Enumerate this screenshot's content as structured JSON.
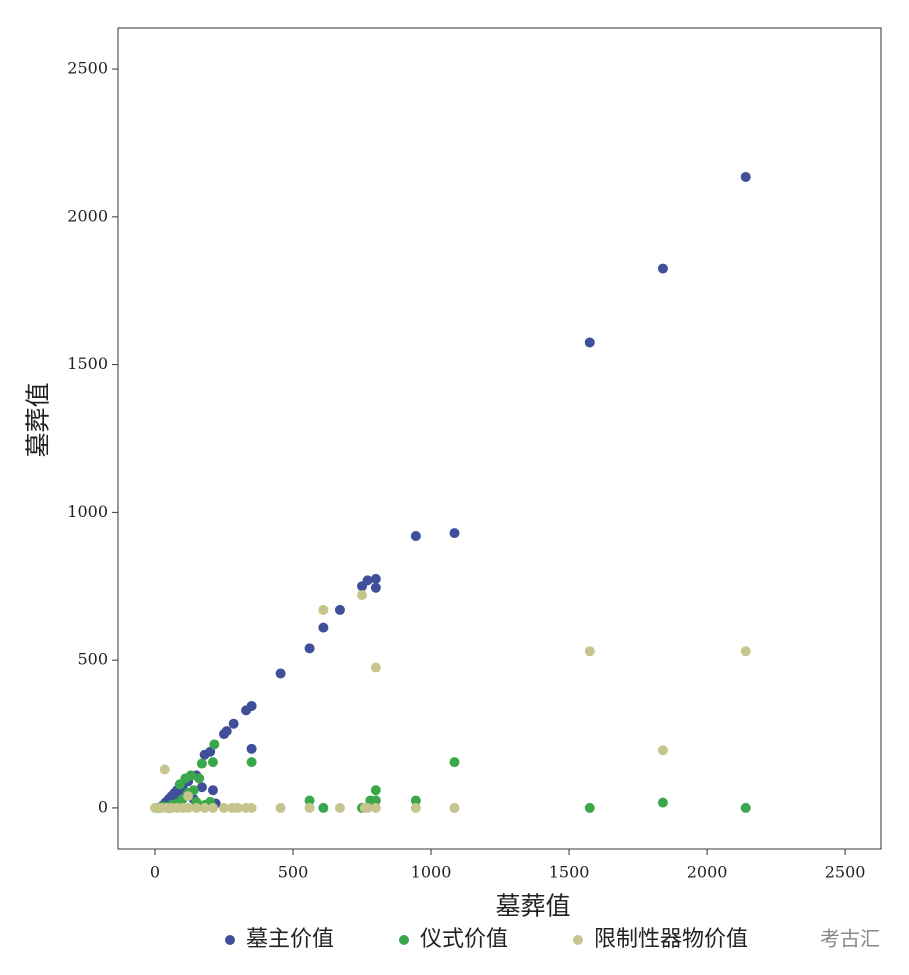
{
  "chart_data": {
    "type": "scatter",
    "x_label": "墓葬值",
    "y_label": "墓葬值",
    "xlim": [
      -134,
      2630
    ],
    "ylim": [
      -139,
      2639
    ],
    "xticks": [
      0,
      500,
      1000,
      1500,
      2000,
      2500
    ],
    "yticks": [
      0,
      500,
      1000,
      1500,
      2000,
      2500
    ],
    "watermark": "考古汇",
    "series": [
      {
        "name": "墓主价值",
        "color": "#3f4f9a",
        "x": [
          2140,
          1840,
          1575,
          1085,
          945,
          800,
          800,
          770,
          750,
          670,
          610,
          560,
          455,
          350,
          330,
          350,
          285,
          260,
          250,
          200,
          210,
          180,
          150,
          120,
          100,
          80,
          60,
          40,
          30,
          170,
          140,
          200,
          220,
          90,
          50,
          70
        ],
        "y": [
          2135,
          1825,
          1575,
          930,
          920,
          775,
          745,
          770,
          750,
          670,
          610,
          540,
          455,
          345,
          330,
          200,
          285,
          260,
          250,
          190,
          60,
          180,
          110,
          90,
          70,
          60,
          40,
          20,
          10,
          70,
          30,
          20,
          15,
          40,
          30,
          50
        ]
      },
      {
        "name": "仪式价值",
        "color": "#3aa84a",
        "x": [
          2140,
          1840,
          1575,
          1085,
          945,
          800,
          800,
          780,
          750,
          610,
          560,
          350,
          215,
          210,
          200,
          170,
          160,
          130,
          110,
          90,
          100,
          80,
          60,
          120,
          140,
          150,
          180,
          30,
          50,
          20,
          10
        ],
        "y": [
          0,
          18,
          0,
          155,
          25,
          60,
          25,
          25,
          0,
          0,
          25,
          155,
          215,
          155,
          20,
          150,
          100,
          110,
          100,
          80,
          30,
          15,
          10,
          50,
          60,
          20,
          10,
          5,
          0,
          0,
          0
        ]
      },
      {
        "name": "限制性器物价值",
        "color": "#c7c58e",
        "x": [
          2140,
          1840,
          1575,
          1085,
          945,
          800,
          750,
          610,
          800,
          770,
          670,
          560,
          455,
          350,
          330,
          300,
          280,
          250,
          210,
          180,
          150,
          120,
          100,
          80,
          60,
          40,
          20,
          0,
          35,
          120,
          760
        ],
        "y": [
          530,
          195,
          530,
          0,
          0,
          475,
          720,
          670,
          0,
          0,
          0,
          0,
          0,
          0,
          0,
          0,
          0,
          0,
          0,
          0,
          0,
          0,
          0,
          0,
          0,
          0,
          0,
          0,
          130,
          40,
          0
        ]
      }
    ]
  }
}
